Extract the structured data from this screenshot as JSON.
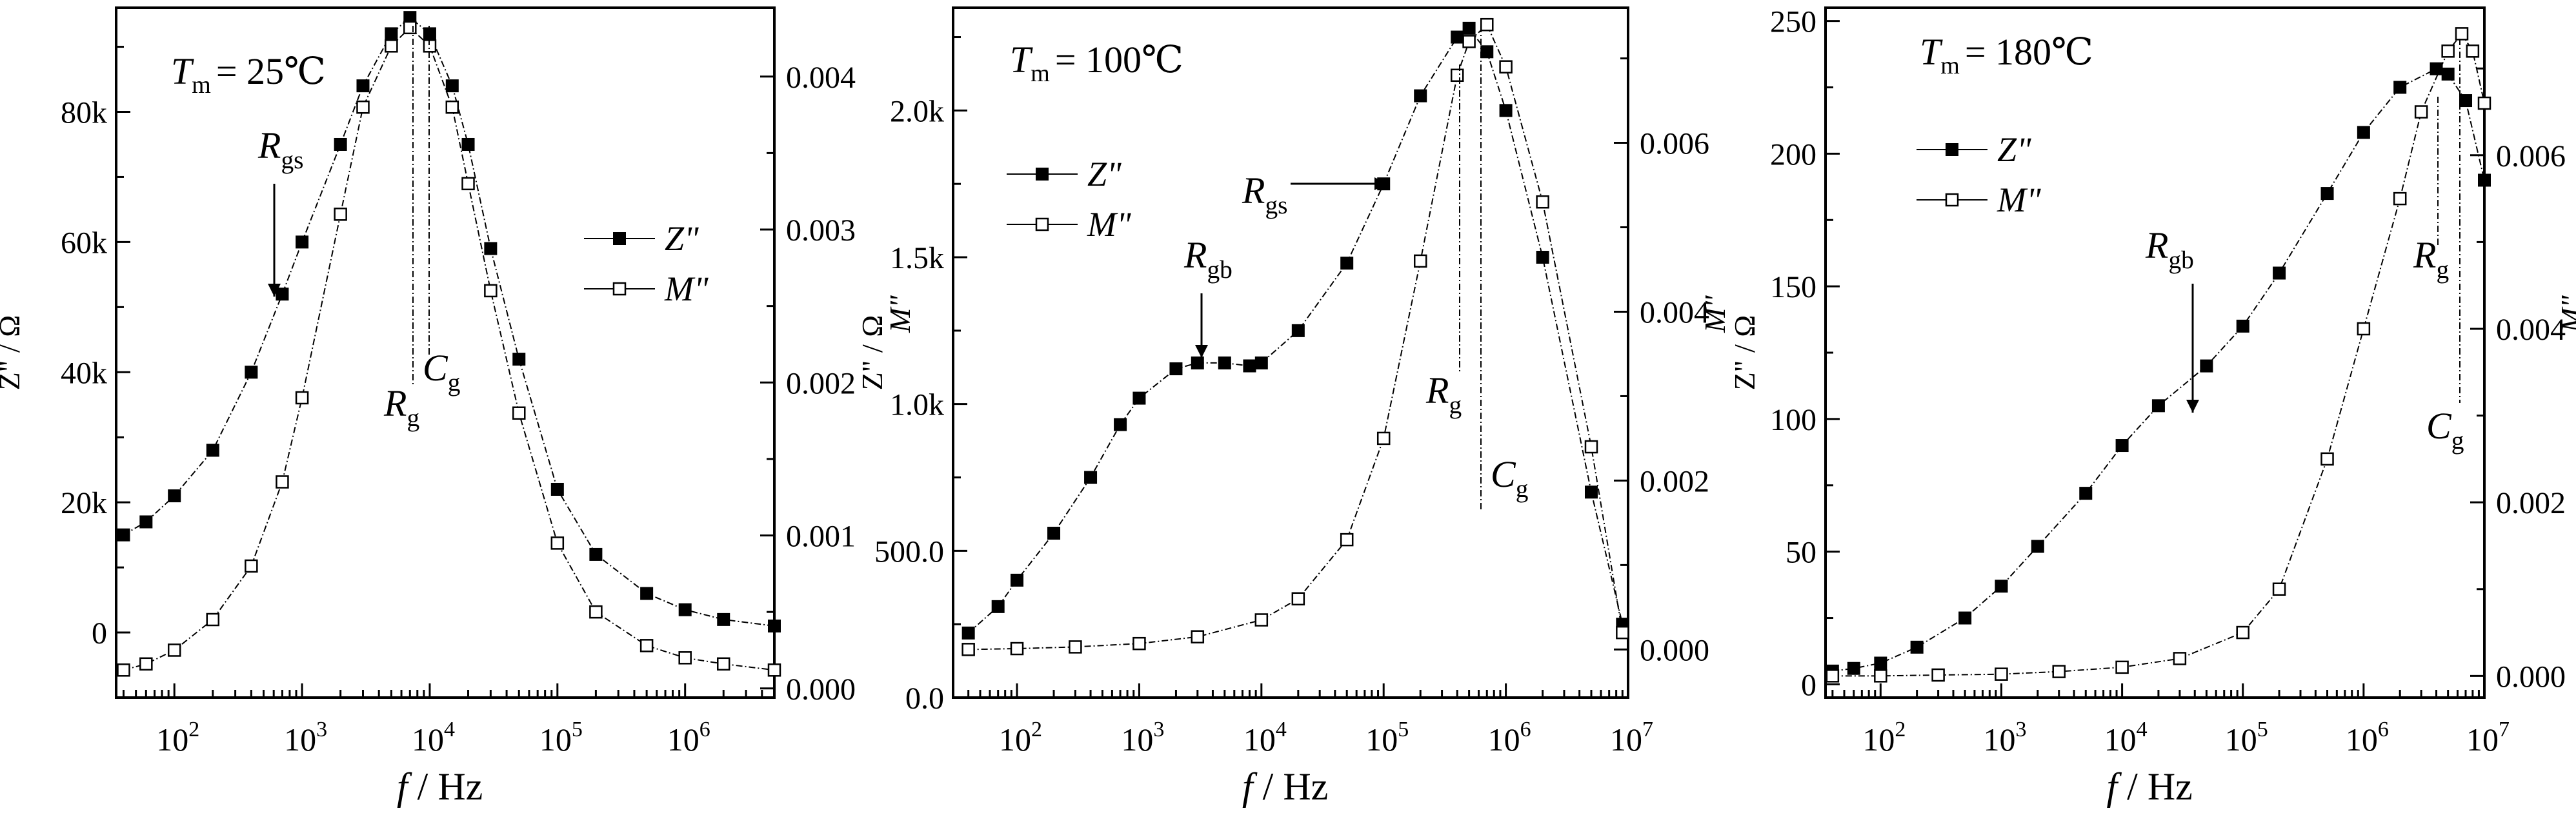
{
  "figure": {
    "panels": [
      {
        "id": "a",
        "temp_prefix": "T",
        "temp_sub": "m",
        "temp_value": "= 25℃",
        "xlabel_f": "f",
        "xlabel_unit": " / Hz",
        "ylabel_left": "Z\" / Ω",
        "ylabel_right": "M\"",
        "legend": [
          "Z\"",
          "M\""
        ],
        "annotations": [
          {
            "main": "R",
            "sub": "gs"
          },
          {
            "main": "R",
            "sub": "g"
          },
          {
            "main": "C",
            "sub": "g"
          }
        ]
      },
      {
        "id": "b",
        "temp_prefix": "T",
        "temp_sub": "m",
        "temp_value": "= 100℃",
        "xlabel_f": "f",
        "xlabel_unit": " / Hz",
        "ylabel_left": "Z\" / Ω",
        "ylabel_right": "M\"",
        "legend": [
          "Z\"",
          "M\""
        ],
        "annotations": [
          {
            "main": "R",
            "sub": "gs"
          },
          {
            "main": "R",
            "sub": "gb"
          },
          {
            "main": "R",
            "sub": "g"
          },
          {
            "main": "C",
            "sub": "g"
          }
        ]
      },
      {
        "id": "c",
        "temp_prefix": "T",
        "temp_sub": "m",
        "temp_value": "= 180℃",
        "xlabel_f": "f",
        "xlabel_unit": " / Hz",
        "ylabel_left": "Z\" / Ω",
        "ylabel_right": "M\"",
        "legend": [
          "Z\"",
          "M\""
        ],
        "annotations": [
          {
            "main": "R",
            "sub": "gb"
          },
          {
            "main": "R",
            "sub": "g"
          },
          {
            "main": "C",
            "sub": "g"
          }
        ]
      }
    ]
  },
  "chart_data": [
    {
      "type": "scatter",
      "title": "",
      "xlabel": "f / Hz",
      "ylabel": "Z\" / Ω",
      "y2label": "M\"",
      "x_scale": "log",
      "xlim": [
        35,
        5000000
      ],
      "ylim": [
        -10000,
        96000
      ],
      "y2lim": [
        -6e-05,
        0.00445
      ],
      "x_tick_labels": [
        "10^2",
        "10^3",
        "10^4",
        "10^5",
        "10^6"
      ],
      "y_tick_labels": [
        "0",
        "20k",
        "40k",
        "60k",
        "80k"
      ],
      "y2_tick_labels": [
        "0.000",
        "0.001",
        "0.002",
        "0.003",
        "0.004"
      ],
      "legend_position": "right-middle",
      "grid": false,
      "series": [
        {
          "name": "Z\"",
          "marker": "filled-square",
          "axis": "left",
          "x": [
            40,
            60,
            100,
            200,
            400,
            700,
            1000,
            2000,
            3000,
            5000,
            7000,
            10000,
            15000,
            20000,
            30000,
            50000,
            100000,
            200000,
            500000,
            1000000,
            2000000,
            5000000
          ],
          "y": [
            15000,
            17000,
            21000,
            28000,
            40000,
            52000,
            60000,
            75000,
            84000,
            92000,
            94500,
            92000,
            84000,
            75000,
            59000,
            42000,
            22000,
            12000,
            6000,
            3500,
            2000,
            1000
          ]
        },
        {
          "name": "M\"",
          "marker": "open-square",
          "axis": "right",
          "x": [
            40,
            60,
            100,
            200,
            400,
            700,
            1000,
            2000,
            3000,
            5000,
            7000,
            10000,
            15000,
            20000,
            30000,
            50000,
            100000,
            200000,
            500000,
            1000000,
            2000000,
            5000000
          ],
          "y": [
            0.00012,
            0.00016,
            0.00025,
            0.00045,
            0.0008,
            0.00135,
            0.0019,
            0.0031,
            0.0038,
            0.0042,
            0.00432,
            0.0042,
            0.0038,
            0.0033,
            0.0026,
            0.0018,
            0.00095,
            0.0005,
            0.00028,
            0.0002,
            0.00016,
            0.00012
          ]
        }
      ]
    },
    {
      "type": "scatter",
      "title": "",
      "xlabel": "f / Hz",
      "ylabel": "Z\" / Ω",
      "y2label": "M\"",
      "x_scale": "log",
      "xlim": [
        30,
        10000000
      ],
      "ylim": [
        0,
        2350
      ],
      "y2lim": [
        -0.00057,
        0.0076
      ],
      "x_tick_labels": [
        "10^2",
        "10^3",
        "10^4",
        "10^5",
        "10^6",
        "10^7"
      ],
      "y_tick_labels": [
        "0.0",
        "500.0",
        "1.0k",
        "1.5k",
        "2.0k"
      ],
      "y2_tick_labels": [
        "0.000",
        "0.002",
        "0.004",
        "0.006"
      ],
      "legend_position": "left-upper",
      "grid": false,
      "series": [
        {
          "name": "Z\"",
          "marker": "filled-square",
          "axis": "left",
          "x": [
            40,
            70,
            100,
            200,
            400,
            700,
            1000,
            2000,
            3000,
            5000,
            8000,
            10000,
            20000,
            50000,
            100000,
            200000,
            400000,
            500000,
            700000,
            1000000,
            2000000,
            5000000,
            9000000
          ],
          "y": [
            220,
            310,
            400,
            560,
            750,
            930,
            1020,
            1120,
            1140,
            1140,
            1130,
            1140,
            1250,
            1480,
            1750,
            2050,
            2250,
            2280,
            2200,
            2000,
            1500,
            700,
            250
          ]
        },
        {
          "name": "M\"",
          "marker": "open-square",
          "axis": "right",
          "x": [
            40,
            100,
            300,
            1000,
            3000,
            10000,
            20000,
            50000,
            100000,
            200000,
            400000,
            500000,
            700000,
            1000000,
            2000000,
            5000000,
            9000000
          ],
          "y": [
            0.0,
            1e-05,
            3e-05,
            7e-05,
            0.00015,
            0.00035,
            0.0006,
            0.0013,
            0.0025,
            0.0046,
            0.0068,
            0.0072,
            0.0074,
            0.0069,
            0.0053,
            0.0024,
            0.0002
          ]
        }
      ]
    },
    {
      "type": "scatter",
      "title": "",
      "xlabel": "f / Hz",
      "ylabel": "Z\" / Ω",
      "y2label": "M\"",
      "x_scale": "log",
      "xlim": [
        35,
        10000000
      ],
      "ylim": [
        -5,
        255
      ],
      "y2lim": [
        -0.00025,
        0.0077
      ],
      "x_tick_labels": [
        "10^2",
        "10^3",
        "10^4",
        "10^5",
        "10^6",
        "10^7"
      ],
      "y_tick_labels": [
        "0",
        "50",
        "100",
        "150",
        "200",
        "250"
      ],
      "y2_tick_labels": [
        "0.000",
        "0.002",
        "0.004",
        "0.006"
      ],
      "legend_position": "left-upper",
      "grid": false,
      "series": [
        {
          "name": "Z\"",
          "marker": "filled-square",
          "axis": "left",
          "x": [
            40,
            60,
            100,
            200,
            500,
            1000,
            2000,
            5000,
            10000,
            20000,
            50000,
            100000,
            200000,
            500000,
            1000000,
            2000000,
            4000000,
            5000000,
            7000000,
            10000000
          ],
          "y": [
            5,
            6,
            8,
            14,
            25,
            37,
            52,
            72,
            90,
            105,
            120,
            135,
            155,
            185,
            208,
            225,
            232,
            230,
            220,
            190
          ]
        },
        {
          "name": "M\"",
          "marker": "open-square",
          "axis": "right",
          "x": [
            40,
            100,
            300,
            1000,
            3000,
            10000,
            30000,
            100000,
            200000,
            500000,
            1000000,
            2000000,
            3000000,
            5000000,
            6500000,
            8000000,
            10000000
          ],
          "y": [
            0.0,
            0.0,
            1e-05,
            2e-05,
            5e-05,
            0.0001,
            0.0002,
            0.0005,
            0.001,
            0.0025,
            0.004,
            0.0055,
            0.0065,
            0.0072,
            0.0074,
            0.0072,
            0.0066
          ]
        }
      ]
    }
  ]
}
